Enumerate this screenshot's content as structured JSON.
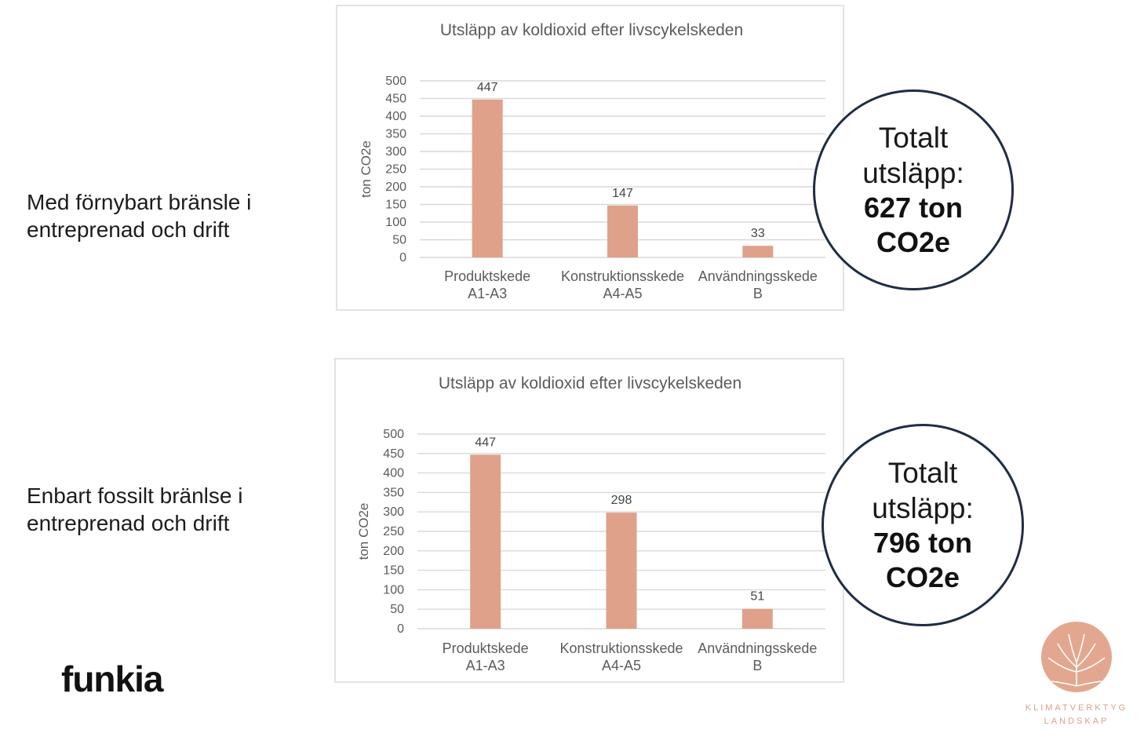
{
  "rows": [
    {
      "label": "Med förnybart bränsle i\nentreprenad och drift",
      "total": {
        "line1": "Totalt",
        "line2": "utsläpp:",
        "value1": "627 ton",
        "value2": "CO2e"
      }
    },
    {
      "label": "Enbart fossilt bränlse i\nentreprenad och drift",
      "total": {
        "line1": "Totalt",
        "line2": "utsläpp:",
        "value1": "796 ton",
        "value2": "CO2e"
      }
    }
  ],
  "chart_data": [
    {
      "type": "bar",
      "title": "Utsläpp av koldioxid efter livscykelskeden",
      "ylabel": "ton CO2e",
      "xlabel": "",
      "categories": [
        [
          "Produktskede",
          "A1-A3"
        ],
        [
          "Konstruktionsskede",
          "A4-A5"
        ],
        [
          "Användningsskede",
          "B"
        ]
      ],
      "values": [
        447,
        147,
        33
      ],
      "ylim": [
        0,
        500
      ],
      "yticks": [
        0,
        50,
        100,
        150,
        200,
        250,
        300,
        350,
        400,
        450,
        500
      ],
      "grid": true,
      "bar_color": "#dfa18a"
    },
    {
      "type": "bar",
      "title": "Utsläpp av koldioxid efter livscykelskeden",
      "ylabel": "ton CO2e",
      "xlabel": "",
      "categories": [
        [
          "Produktskede",
          "A1-A3"
        ],
        [
          "Konstruktionsskede",
          "A4-A5"
        ],
        [
          "Användningsskede",
          "B"
        ]
      ],
      "values": [
        447,
        298,
        51
      ],
      "ylim": [
        0,
        500
      ],
      "yticks": [
        0,
        50,
        100,
        150,
        200,
        250,
        300,
        350,
        400,
        450,
        500
      ],
      "grid": true,
      "bar_color": "#dfa18a"
    }
  ],
  "logos": {
    "left": "funkia",
    "right_line1": "KLIMATVERKTYG",
    "right_line2": "LANDSKAP"
  },
  "colors": {
    "circle_border": "#1f2d44",
    "bar": "#dfa18a",
    "grid": "#d9d9d9"
  }
}
